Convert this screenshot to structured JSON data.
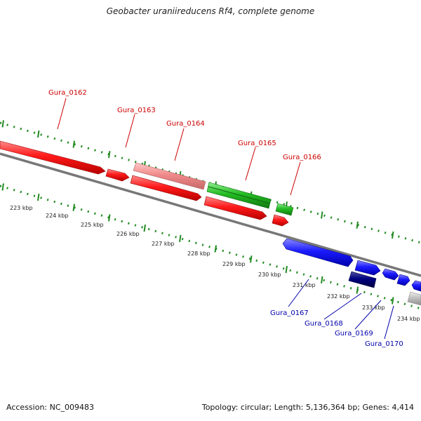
{
  "title": "Geobacter uraniireducens Rf4, complete genome",
  "ticks": [
    "223 kbp",
    "224 kbp",
    "225 kbp",
    "226 kbp",
    "227 kbp",
    "228 kbp",
    "229 kbp",
    "230 kbp",
    "231 kbp",
    "232 kbp",
    "233 kbp",
    "234 kbp"
  ],
  "genes_top": [
    "Gura_0162",
    "Gura_0163",
    "Gura_0164",
    "Gura_0165",
    "Gura_0166"
  ],
  "genes_bottom": [
    "Gura_0167",
    "Gura_0168",
    "Gura_0169",
    "Gura_0170"
  ],
  "colors": {
    "forward": "#ff0000",
    "forward_light": "#f08080",
    "forward_other": "#22bb22",
    "reverse": "#0000ee",
    "reverse_dark": "#000080",
    "unknown": "#bbbbbb",
    "backbone": "#888888",
    "dots": "#228b22",
    "label_top": "#cc0000",
    "label_bottom": "#0000aa"
  },
  "footer": {
    "accession": "Accession: NC_009483",
    "summary": "Topology: circular; Length: 5,136,364 bp; Genes: 4,414"
  }
}
